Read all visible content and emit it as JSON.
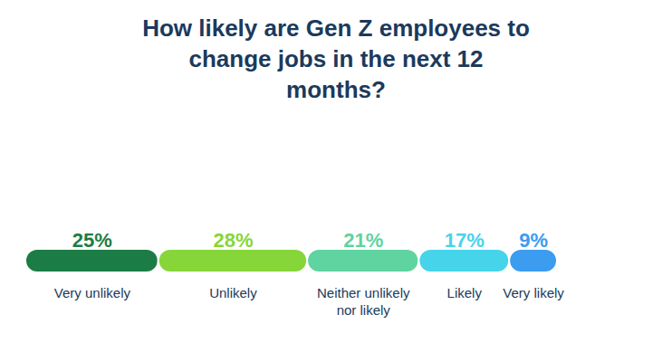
{
  "chart_data": {
    "type": "bar",
    "title": "How likely are Gen Z employees to change jobs in the next 12 months?",
    "orientation": "horizontal",
    "stacked": true,
    "categories": [
      "Very unlikely",
      "Unlikely",
      "Neither unlikely nor likely",
      "Likely",
      "Very likely"
    ],
    "values": [
      25,
      28,
      21,
      17,
      9
    ],
    "value_labels": [
      "25%",
      "28%",
      "21%",
      "17%",
      "9%"
    ],
    "colors": [
      "#1b7d45",
      "#86d63a",
      "#5fd3a0",
      "#46d4ea",
      "#3b9cf0"
    ],
    "xlim": [
      0,
      100
    ],
    "xticks": [],
    "tick_labels": false,
    "data_labels": true
  }
}
